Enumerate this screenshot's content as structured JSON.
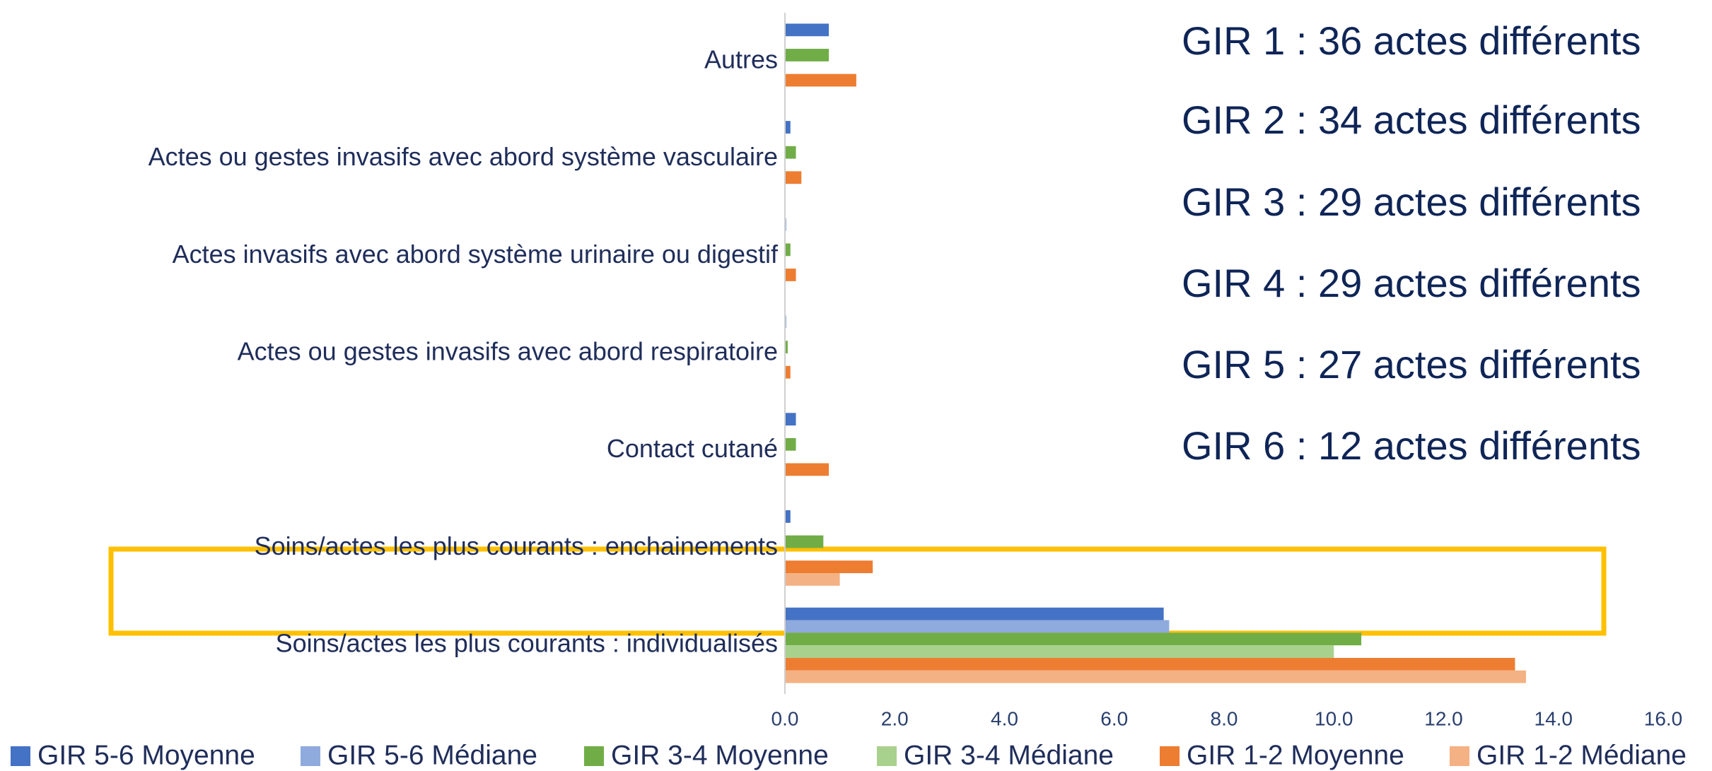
{
  "chart_data": {
    "type": "bar",
    "orientation": "horizontal",
    "categories": [
      "Autres",
      "Actes ou gestes invasifs avec abord système vasculaire",
      "Actes invasifs avec abord système urinaire ou digestif",
      "Actes ou gestes invasifs avec abord respiratoire",
      "Contact cutané",
      "Soins/actes les plus courants : enchainements",
      "Soins/actes les plus courants : individualisés"
    ],
    "series": [
      {
        "name": "GIR 5-6 Moyenne",
        "color": "#4472c4",
        "values": [
          0.8,
          0.1,
          0.02,
          0.02,
          0.2,
          0.1,
          6.9
        ]
      },
      {
        "name": "GIR 5-6 Médiane",
        "color": "#8faadc",
        "values": [
          0,
          0,
          0,
          0,
          0,
          0,
          7.0
        ]
      },
      {
        "name": "GIR 3-4 Moyenne",
        "color": "#70ad47",
        "values": [
          0.8,
          0.2,
          0.1,
          0.05,
          0.2,
          0.7,
          10.5
        ]
      },
      {
        "name": "GIR 3-4 Médiane",
        "color": "#a9d18e",
        "values": [
          0,
          0,
          0,
          0,
          0,
          0,
          10.0
        ]
      },
      {
        "name": "GIR 1-2 Moyenne",
        "color": "#ed7d31",
        "values": [
          1.3,
          0.3,
          0.2,
          0.1,
          0.8,
          1.6,
          13.3
        ]
      },
      {
        "name": "GIR 1-2 Médiane",
        "color": "#f4b183",
        "values": [
          0,
          0,
          0,
          0,
          0,
          1.0,
          13.5
        ]
      }
    ],
    "xlim": [
      0,
      16
    ],
    "xticks": [
      {
        "value": 0,
        "label": "0.0"
      },
      {
        "value": 2,
        "label": "2.0"
      },
      {
        "value": 4,
        "label": "4.0"
      },
      {
        "value": 6,
        "label": "6.0"
      },
      {
        "value": 8,
        "label": "8.0"
      },
      {
        "value": 10,
        "label": "10.0"
      },
      {
        "value": 12,
        "label": "12.0"
      },
      {
        "value": 14,
        "label": "14.0"
      },
      {
        "value": 16,
        "label": "16.0"
      }
    ],
    "annotations": [
      "GIR 1 : 36 actes différents",
      "GIR 2 : 34 actes différents",
      "GIR 3 : 29 actes différents",
      "GIR 4 : 29 actes différents",
      "GIR 5 : 27 actes différents",
      "GIR 6 : 12 actes différents"
    ],
    "legend": "bottom",
    "grid": false
  }
}
